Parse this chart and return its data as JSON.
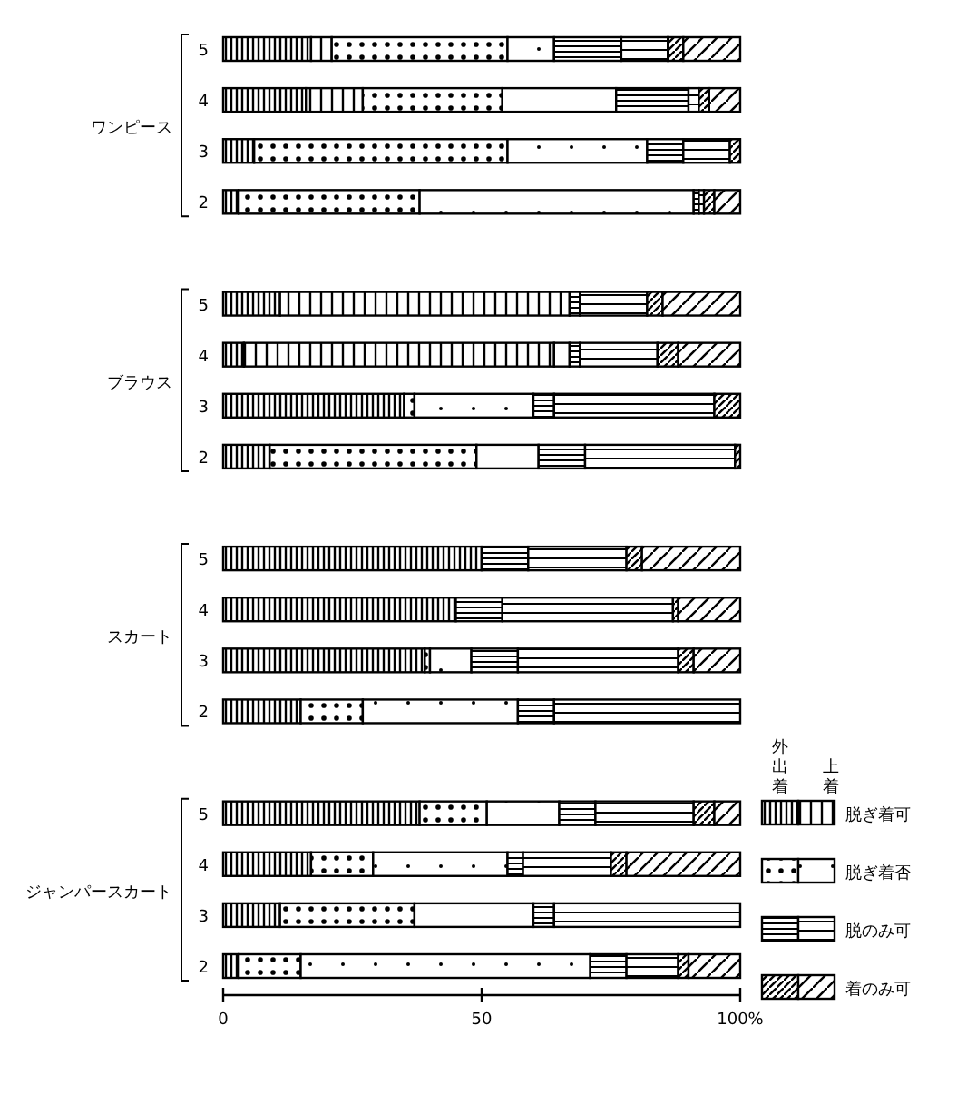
{
  "chart_data": {
    "type": "bar",
    "orientation": "horizontal",
    "stacked": true,
    "categories": [
      "5",
      "4",
      "3",
      "2",
      null,
      "5",
      "4",
      "3",
      "2",
      null,
      "5",
      "4",
      "3",
      "2",
      null,
      "5",
      "4",
      "3",
      "2"
    ],
    "xlim": [
      0,
      100
    ],
    "xticks": [
      0,
      50,
      {
        "value": 100,
        "label": "100%"
      }
    ],
    "annotations": [
      "ワンピース",
      "ブラウス",
      "スカート",
      "ジャンパースカート",
      "外出着",
      "上着",
      "脱ぎ着可",
      "脱ぎ着否",
      "脱のみ可",
      "着のみ可"
    ],
    "series": [
      {
        "color": "#000000",
        "values": [
          17,
          16,
          6,
          3,
          null,
          11,
          4,
          35,
          9,
          null,
          50,
          45,
          39,
          15,
          null,
          38,
          17,
          11,
          3
        ]
      },
      {
        "color": "#000000",
        "values": [
          4,
          11,
          0,
          0,
          null,
          56,
          60,
          0,
          0,
          null,
          0,
          0,
          0,
          0,
          null,
          0,
          0,
          0,
          0
        ]
      },
      {
        "color": "#000000",
        "values": [
          34,
          27,
          49,
          35,
          null,
          0,
          0,
          2,
          40,
          null,
          0,
          0,
          1,
          12,
          null,
          13,
          12,
          26,
          12
        ]
      },
      {
        "color": "#000000",
        "values": [
          9,
          22,
          27,
          53,
          null,
          0,
          3,
          23,
          12,
          null,
          0,
          0,
          8,
          30,
          null,
          14,
          26,
          23,
          56
        ]
      },
      {
        "color": "#000000",
        "values": [
          13,
          14,
          7,
          1,
          null,
          2,
          2,
          4,
          9,
          null,
          9,
          9,
          9,
          7,
          null,
          7,
          3,
          4,
          7
        ]
      },
      {
        "color": "#000000",
        "values": [
          9,
          2,
          9,
          1,
          null,
          13,
          15,
          31,
          29,
          null,
          19,
          33,
          31,
          36,
          null,
          19,
          17,
          36,
          10
        ]
      },
      {
        "color": "#000000",
        "values": [
          3,
          2,
          2,
          2,
          null,
          3,
          4,
          5,
          1,
          null,
          3,
          1,
          3,
          0,
          null,
          4,
          3,
          0,
          2
        ]
      },
      {
        "color": "#000000",
        "values": [
          11,
          6,
          0,
          5,
          null,
          15,
          12,
          0,
          0,
          null,
          19,
          12,
          9,
          0,
          null,
          5,
          22,
          0,
          10
        ]
      }
    ]
  }
}
